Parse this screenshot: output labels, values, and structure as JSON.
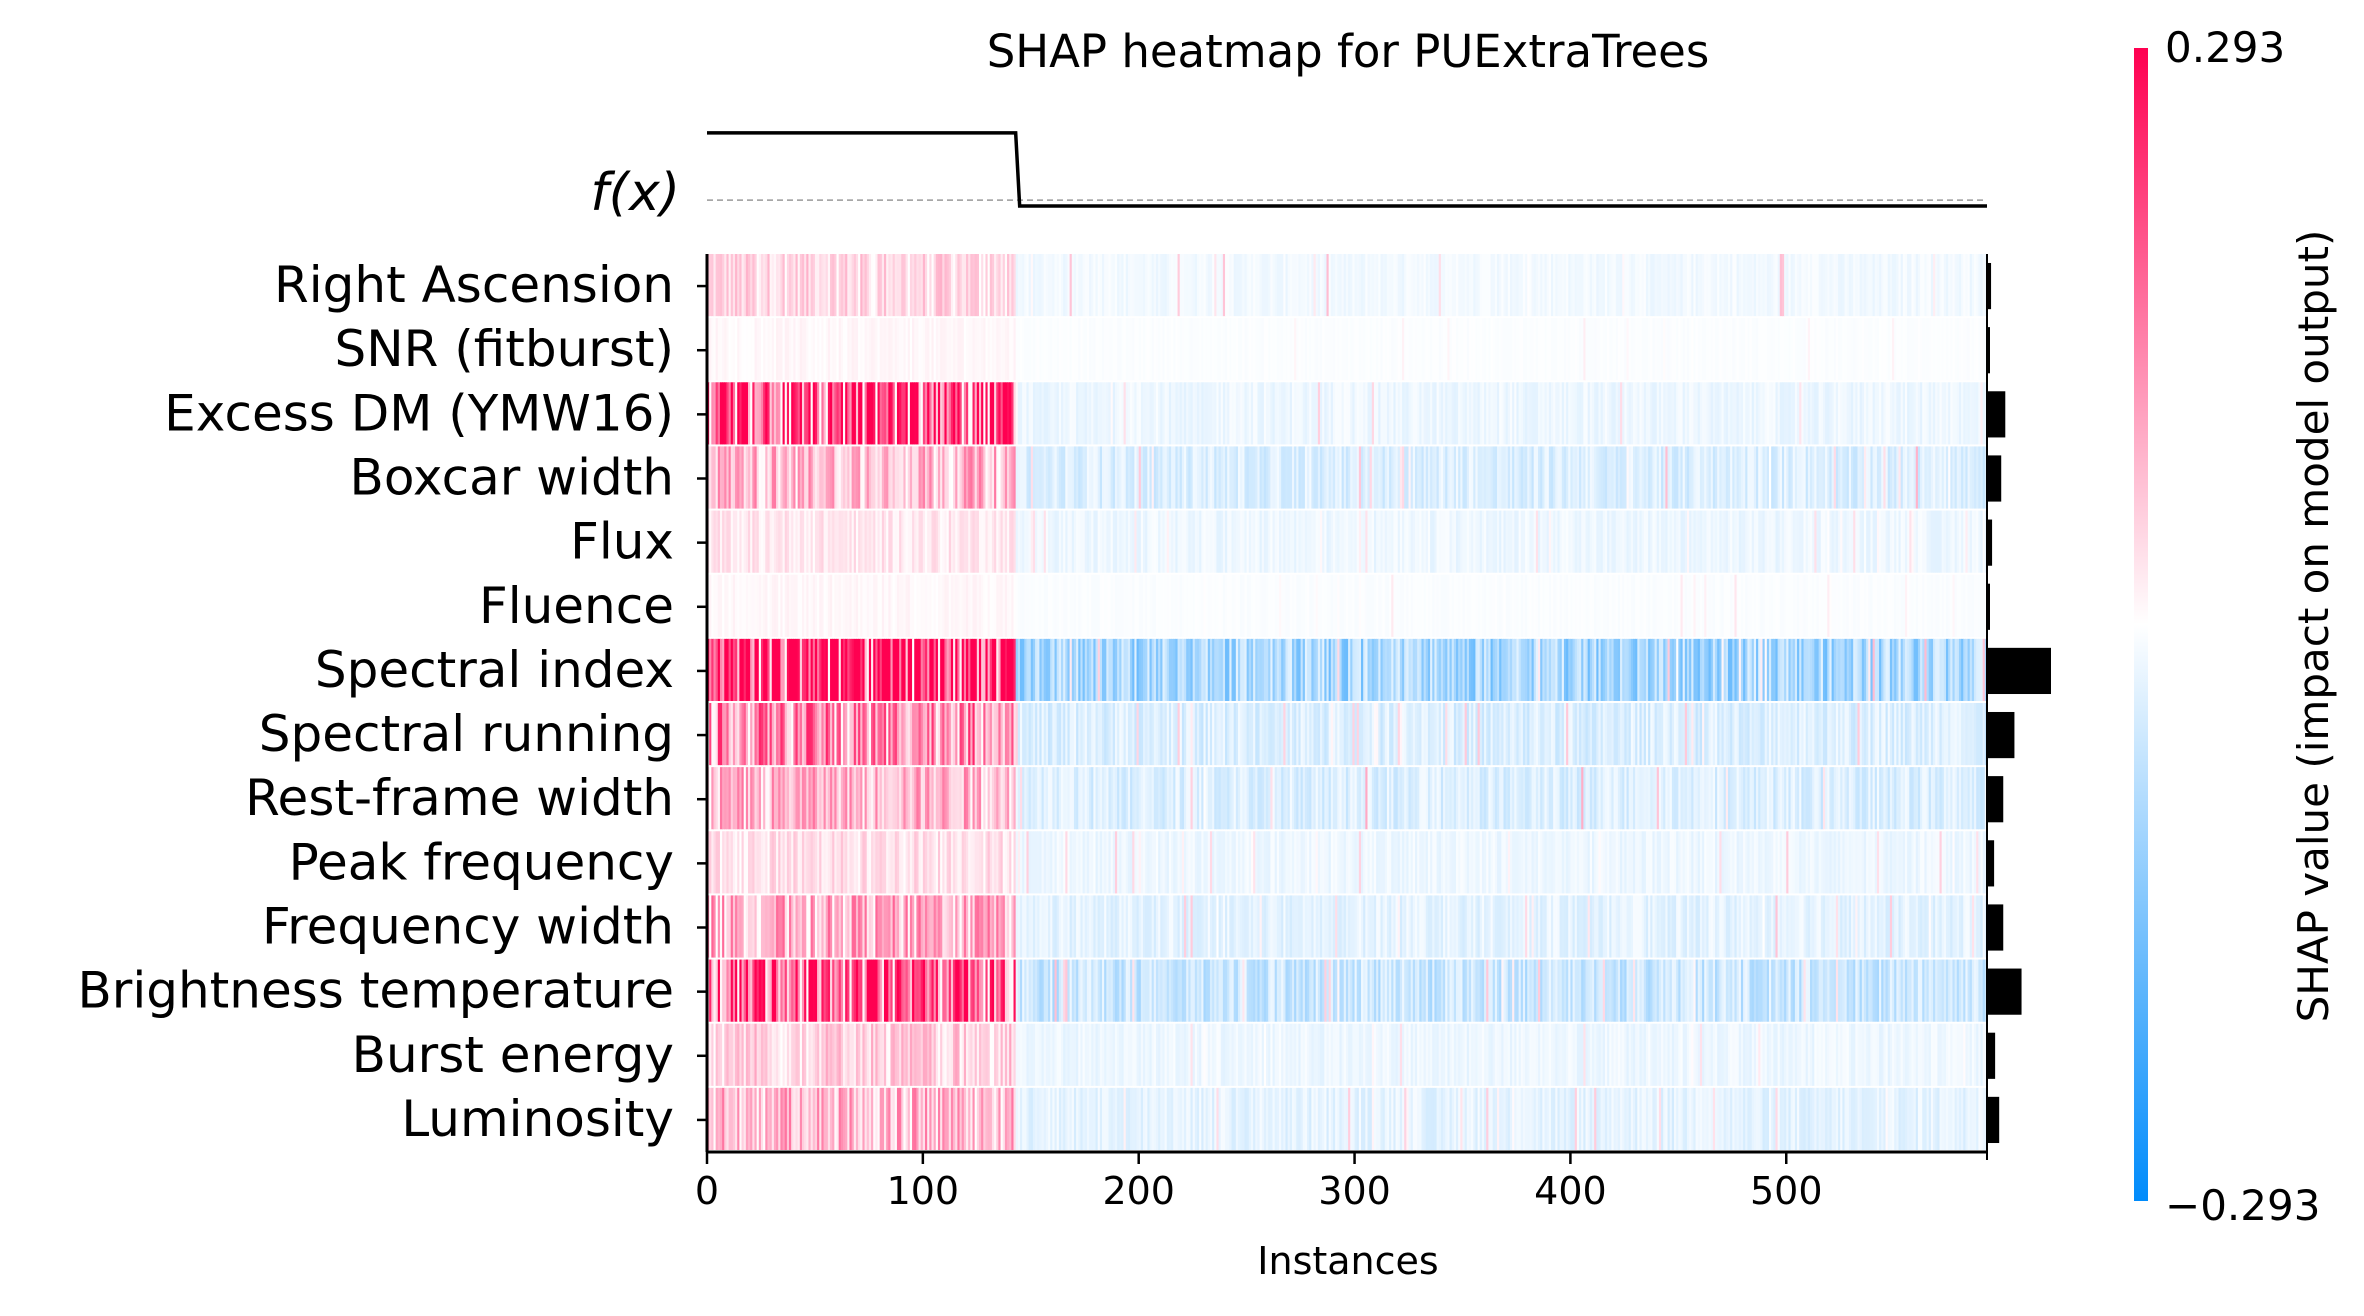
{
  "chart_data": {
    "type": "heatmap",
    "title": "SHAP heatmap for PUExtraTrees",
    "xlabel": "Instances",
    "fx_label": "f(x)",
    "colorbar_label": "SHAP value (impact on model output)",
    "colorbar_max_label": "0.293",
    "colorbar_min_label": "−0.293",
    "color_range": [
      -0.293,
      0.293
    ],
    "colors": {
      "positive": "#ff0051",
      "negative": "#008bfb",
      "neutral": "#ffffff"
    },
    "n_instances": 593,
    "xlim": [
      0,
      593
    ],
    "x_ticks": [
      0,
      100,
      200,
      300,
      400,
      500
    ],
    "x_tick_labels": [
      "0",
      "100",
      "200",
      "300",
      "400",
      "500"
    ],
    "fx_step": {
      "split_instance": 143,
      "high_level": 0.45,
      "low_level": -0.04,
      "baseline": 0.0,
      "ylim": [
        -0.12,
        0.55
      ]
    },
    "features": [
      {
        "name": "Right Ascension",
        "importance": 0.004,
        "pos_mean": 0.05,
        "neg_mean": -0.015,
        "spike": 0.08
      },
      {
        "name": "SNR (fitburst)",
        "importance": 0.001,
        "pos_mean": 0.01,
        "neg_mean": -0.004,
        "spike": 0.02
      },
      {
        "name": "Excess DM (YMW16)",
        "importance": 0.018,
        "pos_mean": 0.22,
        "neg_mean": -0.02,
        "spike": 0.06
      },
      {
        "name": "Boxcar width",
        "importance": 0.014,
        "pos_mean": 0.09,
        "neg_mean": -0.04,
        "spike": 0.09
      },
      {
        "name": "Flux",
        "importance": 0.005,
        "pos_mean": 0.03,
        "neg_mean": -0.02,
        "spike": 0.04
      },
      {
        "name": "Fluence",
        "importance": 0.001,
        "pos_mean": 0.01,
        "neg_mean": -0.005,
        "spike": 0.03
      },
      {
        "name": "Spectral index",
        "importance": 0.063,
        "pos_mean": 0.27,
        "neg_mean": -0.1,
        "spike": 0.08
      },
      {
        "name": "Spectral running",
        "importance": 0.027,
        "pos_mean": 0.14,
        "neg_mean": -0.04,
        "spike": 0.07
      },
      {
        "name": "Rest-frame width",
        "importance": 0.016,
        "pos_mean": 0.09,
        "neg_mean": -0.04,
        "spike": 0.1
      },
      {
        "name": "Peak frequency",
        "importance": 0.007,
        "pos_mean": 0.04,
        "neg_mean": -0.02,
        "spike": 0.06
      },
      {
        "name": "Frequency width",
        "importance": 0.016,
        "pos_mean": 0.1,
        "neg_mean": -0.03,
        "spike": 0.07
      },
      {
        "name": "Brightness temperature",
        "importance": 0.034,
        "pos_mean": 0.2,
        "neg_mean": -0.06,
        "spike": 0.08
      },
      {
        "name": "Burst energy",
        "importance": 0.008,
        "pos_mean": 0.06,
        "neg_mean": -0.02,
        "spike": 0.05
      },
      {
        "name": "Luminosity",
        "importance": 0.012,
        "pos_mean": 0.09,
        "neg_mean": -0.03,
        "spike": 0.06
      }
    ]
  }
}
